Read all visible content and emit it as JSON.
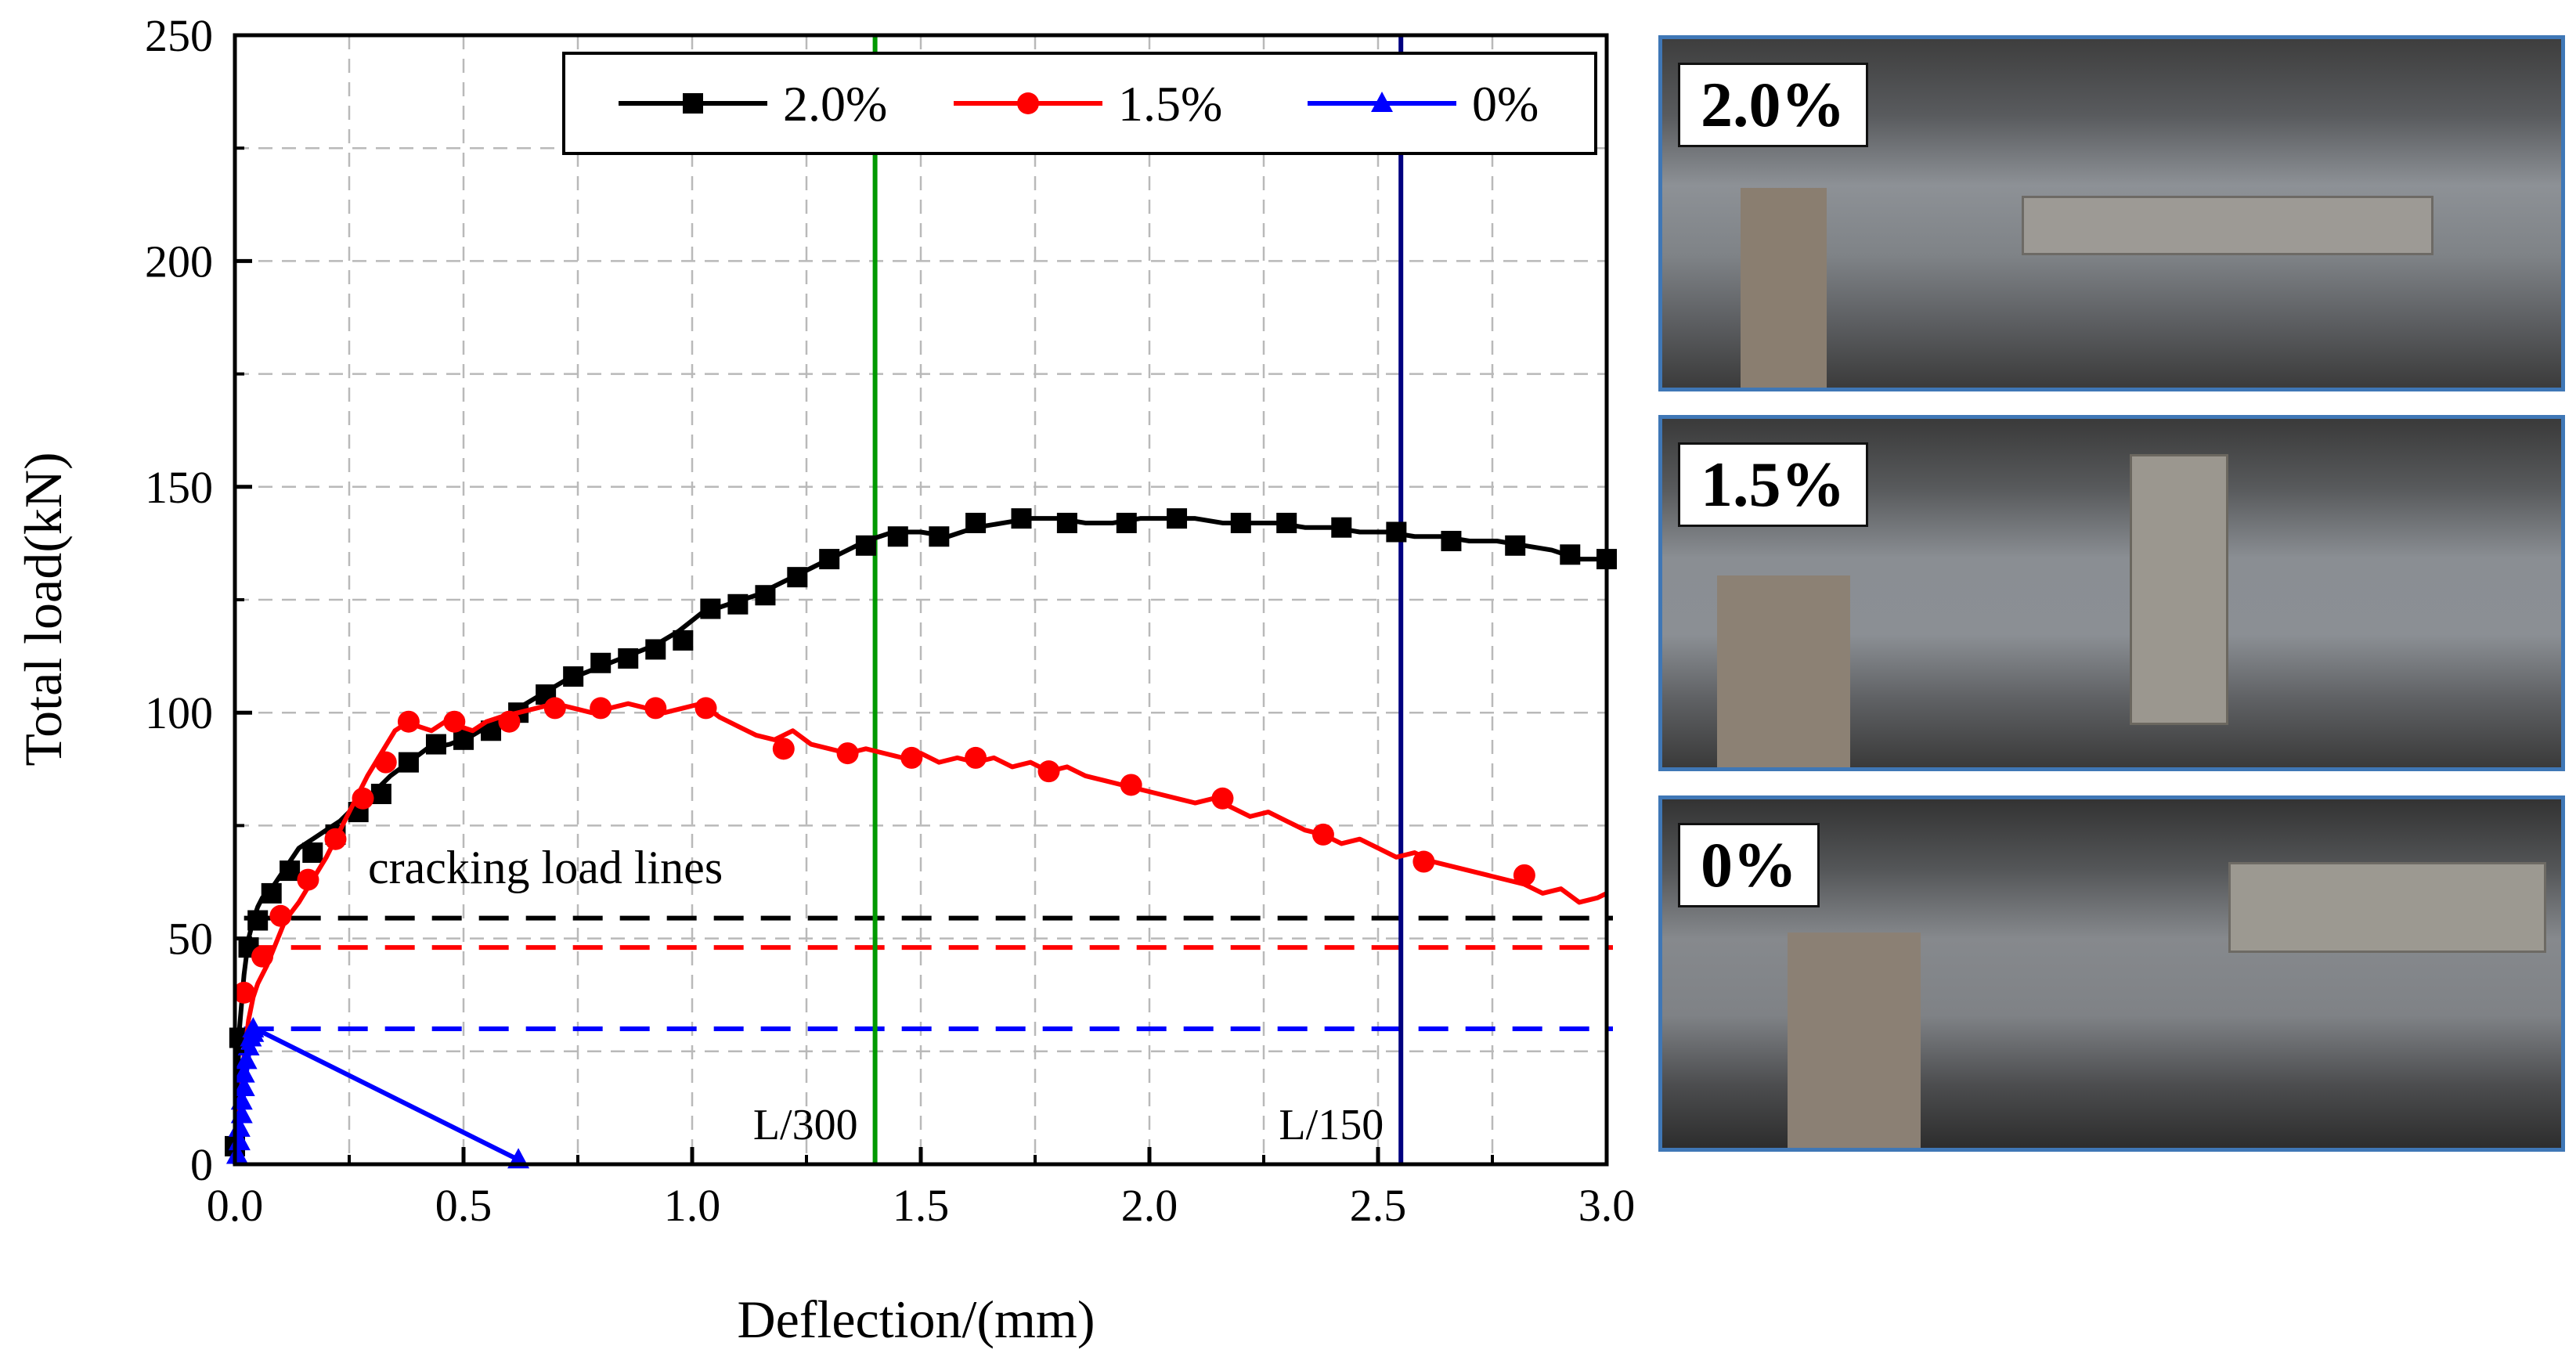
{
  "chart_data": {
    "type": "line",
    "xlabel": "Deflection/(mm)",
    "ylabel": "Total load(kN)",
    "xlim": [
      0,
      3.0
    ],
    "ylim": [
      0,
      250
    ],
    "xticks": [
      "0.0",
      "0.5",
      "1.0",
      "1.5",
      "2.0",
      "2.5",
      "3.0"
    ],
    "yticks": [
      "0",
      "50",
      "100",
      "150",
      "200",
      "250"
    ],
    "grid": true,
    "legend_position": "top-right",
    "series": [
      {
        "name": "2.0%",
        "color": "#000000",
        "marker": "square",
        "x": [
          0,
          0.005,
          0.01,
          0.02,
          0.03,
          0.04,
          0.05,
          0.06,
          0.08,
          0.1,
          0.12,
          0.14,
          0.17,
          0.2,
          0.23,
          0.26,
          0.3,
          0.34,
          0.38,
          0.42,
          0.47,
          0.52,
          0.57,
          0.62,
          0.67,
          0.72,
          0.77,
          0.82,
          0.87,
          0.92,
          0.97,
          1.02,
          1.08,
          1.14,
          1.2,
          1.26,
          1.32,
          1.38,
          1.44,
          1.5,
          1.56,
          1.62,
          1.68,
          1.74,
          1.8,
          1.86,
          1.92,
          1.98,
          2.04,
          2.1,
          2.16,
          2.22,
          2.28,
          2.34,
          2.4,
          2.46,
          2.52,
          2.58,
          2.64,
          2.7,
          2.76,
          2.82,
          2.88,
          2.94,
          3.0
        ],
        "y": [
          0,
          16,
          30,
          42,
          50,
          54,
          57,
          59,
          61,
          64,
          67,
          70,
          72,
          74,
          76,
          79,
          82,
          86,
          89,
          92,
          93,
          95,
          98,
          101,
          104,
          107,
          109,
          111,
          113,
          115,
          118,
          122,
          124,
          126,
          129,
          132,
          135,
          138,
          140,
          140,
          139,
          141,
          142,
          143,
          143,
          142,
          142,
          143,
          143,
          143,
          142,
          142,
          142,
          141,
          141,
          140,
          140,
          139,
          139,
          138,
          138,
          137,
          136,
          134,
          134
        ],
        "marker_x": [
          0,
          0.01,
          0.03,
          0.05,
          0.08,
          0.12,
          0.17,
          0.22,
          0.27,
          0.32,
          0.38,
          0.44,
          0.5,
          0.56,
          0.62,
          0.68,
          0.74,
          0.8,
          0.86,
          0.92,
          0.98,
          1.04,
          1.1,
          1.16,
          1.23,
          1.3,
          1.38,
          1.45,
          1.54,
          1.62,
          1.72,
          1.82,
          1.95,
          2.06,
          2.2,
          2.3,
          2.42,
          2.54,
          2.66,
          2.8,
          2.92,
          3.0
        ],
        "marker_y": [
          4,
          28,
          48,
          54,
          60,
          65,
          69,
          73,
          78,
          82,
          89,
          93,
          94,
          96,
          100,
          104,
          108,
          111,
          112,
          114,
          116,
          123,
          124,
          126,
          130,
          134,
          137,
          139,
          139,
          142,
          143,
          142,
          142,
          143,
          142,
          142,
          141,
          140,
          138,
          137,
          135,
          134
        ]
      },
      {
        "name": "1.5%",
        "color": "#ff0000",
        "marker": "circle",
        "x": [
          0,
          0.01,
          0.02,
          0.03,
          0.04,
          0.05,
          0.07,
          0.09,
          0.11,
          0.14,
          0.17,
          0.2,
          0.23,
          0.26,
          0.29,
          0.32,
          0.35,
          0.38,
          0.4,
          0.43,
          0.46,
          0.49,
          0.52,
          0.55,
          0.58,
          0.62,
          0.66,
          0.7,
          0.74,
          0.78,
          0.82,
          0.86,
          0.9,
          0.94,
          0.98,
          1.02,
          1.06,
          1.1,
          1.14,
          1.18,
          1.22,
          1.26,
          1.3,
          1.34,
          1.38,
          1.42,
          1.46,
          1.5,
          1.54,
          1.58,
          1.62,
          1.66,
          1.7,
          1.74,
          1.78,
          1.82,
          1.86,
          1.9,
          1.94,
          1.98,
          2.02,
          2.06,
          2.1,
          2.14,
          2.18,
          2.22,
          2.26,
          2.3,
          2.34,
          2.38,
          2.42,
          2.46,
          2.5,
          2.54,
          2.58,
          2.62,
          2.66,
          2.7,
          2.74,
          2.78,
          2.82,
          2.86,
          2.9,
          2.94,
          2.98,
          3.0
        ],
        "y": [
          0,
          12,
          24,
          32,
          37,
          40,
          44,
          49,
          54,
          58,
          63,
          68,
          74,
          80,
          86,
          91,
          96,
          98,
          97,
          96,
          98,
          97,
          96,
          98,
          99,
          100,
          101,
          102,
          101,
          100,
          101,
          102,
          101,
          100,
          101,
          102,
          99,
          97,
          95,
          94,
          96,
          93,
          92,
          91,
          92,
          91,
          90,
          91,
          89,
          90,
          89,
          90,
          88,
          89,
          87,
          88,
          86,
          85,
          84,
          83,
          82,
          81,
          80,
          81,
          79,
          77,
          78,
          76,
          74,
          73,
          71,
          72,
          70,
          68,
          69,
          67,
          66,
          65,
          64,
          63,
          62,
          60,
          61,
          58,
          59,
          60
        ],
        "marker_x": [
          0.02,
          0.06,
          0.1,
          0.16,
          0.22,
          0.28,
          0.33,
          0.38,
          0.48,
          0.6,
          0.7,
          0.8,
          0.92,
          1.03,
          1.2,
          1.34,
          1.48,
          1.62,
          1.78,
          1.96,
          2.16,
          2.38,
          2.6,
          2.82
        ],
        "marker_y": [
          38,
          46,
          55,
          63,
          72,
          81,
          89,
          98,
          98,
          98,
          101,
          101,
          101,
          101,
          92,
          91,
          90,
          90,
          87,
          84,
          81,
          73,
          67,
          64
        ]
      },
      {
        "name": "0%",
        "color": "#0000ff",
        "marker": "triangle",
        "x": [
          0,
          0.005,
          0.01,
          0.015,
          0.02,
          0.025,
          0.03,
          0.035,
          0.04,
          0.045,
          0.62
        ],
        "y": [
          0,
          4,
          8,
          12,
          16,
          20,
          24,
          27,
          29,
          30,
          1
        ],
        "marker_x": [
          0.005,
          0.01,
          0.01,
          0.015,
          0.015,
          0.02,
          0.02,
          0.025,
          0.03,
          0.035,
          0.04,
          0.04,
          0.62
        ],
        "marker_y": [
          2,
          5,
          8,
          11,
          14,
          17,
          20,
          23,
          26,
          28,
          29,
          30,
          1
        ]
      }
    ],
    "hlines": [
      {
        "name": "2.0% cracking load",
        "y": 54.5,
        "color": "#000000"
      },
      {
        "name": "1.5% cracking load",
        "y": 48,
        "color": "#ff0000"
      },
      {
        "name": "0% cracking load",
        "y": 30,
        "color": "#0000ff"
      }
    ],
    "vlines": [
      {
        "name": "L/300",
        "x": 1.4,
        "color": "#009900",
        "label": "L/300"
      },
      {
        "name": "L/150",
        "x": 2.55,
        "color": "#000080",
        "label": "L/150"
      }
    ],
    "annotations": [
      {
        "text": "cracking load lines",
        "x": 0.28,
        "y": 65
      }
    ]
  },
  "photos": [
    {
      "label": "2.0%"
    },
    {
      "label": "1.5%"
    },
    {
      "label": "0%"
    }
  ]
}
